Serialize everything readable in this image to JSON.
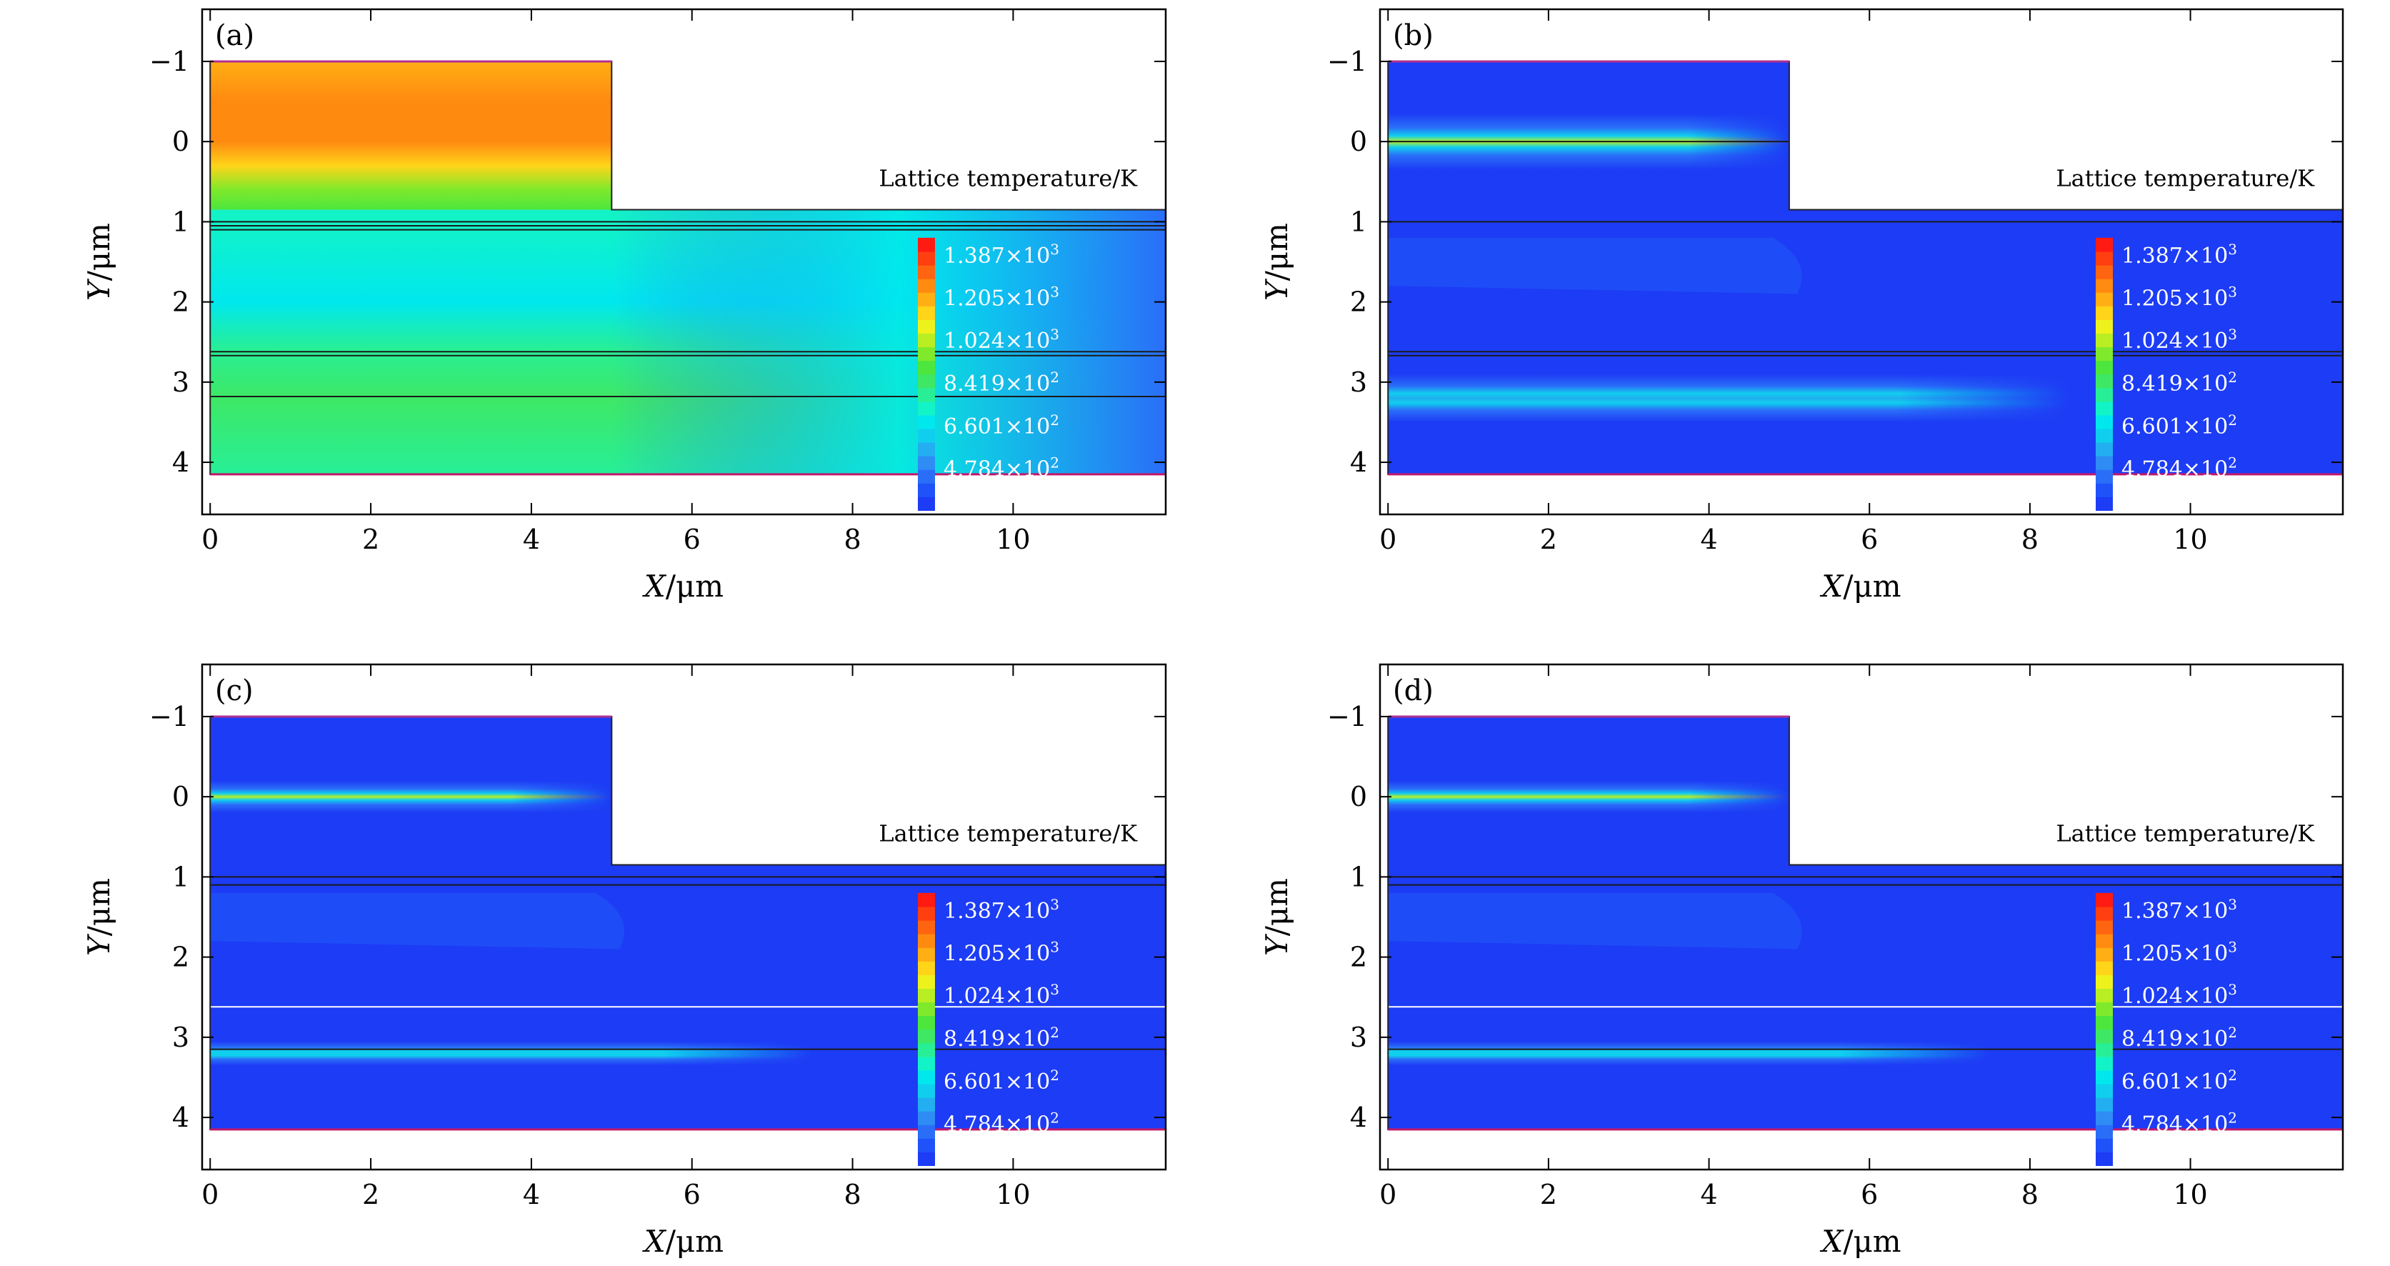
{
  "figure": {
    "description_units": "micrometres",
    "colorbar": {
      "title": "Lattice temperature/K",
      "min": 300,
      "max": 1460,
      "tick_labels": [
        {
          "mantissa": "1.387",
          "exp": "3",
          "value": 1387
        },
        {
          "mantissa": "1.205",
          "exp": "3",
          "value": 1205
        },
        {
          "mantissa": "1.024",
          "exp": "3",
          "value": 1024
        },
        {
          "mantissa": "8.419",
          "exp": "2",
          "value": 841.9
        },
        {
          "mantissa": "6.601",
          "exp": "2",
          "value": 660.1
        },
        {
          "mantissa": "4.784",
          "exp": "2",
          "value": 478.4
        }
      ],
      "colors": [
        "#1d3cf5",
        "#1f52f8",
        "#2a6ef8",
        "#2f8cf5",
        "#22aef0",
        "#10cfee",
        "#00e8ee",
        "#12f3c7",
        "#28ef95",
        "#3ee865",
        "#4ce63d",
        "#7fe92b",
        "#b9ee23",
        "#eef21c",
        "#ffd419",
        "#ffae14",
        "#ff8a10",
        "#ff6410",
        "#ff3f10",
        "#ff1a12"
      ]
    },
    "separator": "×",
    "base": "10"
  },
  "chart_data": [
    {
      "type": "heatmap",
      "panel_label": "(a)",
      "title": "",
      "xlabel_var": "X",
      "xlabel_unit": "/μm",
      "ylabel_var": "Y",
      "ylabel_unit": "/μm",
      "xlim": [
        -0.1,
        11.9
      ],
      "ylim": [
        -1.65,
        4.65
      ],
      "xticks": [
        "0",
        "2",
        "4",
        "6",
        "8",
        "10"
      ],
      "yticks": [
        "−1",
        "0",
        "1",
        "2",
        "3",
        "4"
      ],
      "geometry": {
        "ridge_x": [
          0,
          5
        ],
        "ridge_y_top": -1,
        "slab_y_top": 0.85,
        "bottom_y": 4.15,
        "x_max": 11.9
      },
      "color_scale": "Lattice temperature/K",
      "temperature_profile": {
        "ridge": [
          {
            "y": -1.0,
            "T": 1180
          },
          {
            "y": -0.5,
            "T": 1230
          },
          {
            "y": 0.0,
            "T": 1250
          },
          {
            "y": 0.3,
            "T": 1150
          },
          {
            "y": 0.6,
            "T": 980
          },
          {
            "y": 0.85,
            "T": 880
          }
        ],
        "left_column": [
          {
            "y": 1.0,
            "T": 720
          },
          {
            "y": 2.0,
            "T": 690
          },
          {
            "y": 2.6,
            "T": 780
          },
          {
            "y": 3.2,
            "T": 830
          },
          {
            "y": 4.1,
            "T": 800
          }
        ],
        "right_edge": {
          "x": 11.9,
          "T": 470
        }
      },
      "lines_y": [
        1.0,
        1.05,
        1.1,
        2.62,
        2.67,
        3.18
      ]
    },
    {
      "type": "heatmap",
      "panel_label": "(b)",
      "title": "",
      "xlabel_var": "X",
      "xlabel_unit": "/μm",
      "ylabel_var": "Y",
      "ylabel_unit": "/μm",
      "xlim": [
        -0.1,
        11.9
      ],
      "ylim": [
        -1.65,
        4.65
      ],
      "xticks": [
        "0",
        "2",
        "4",
        "6",
        "8",
        "10"
      ],
      "yticks": [
        "−1",
        "0",
        "1",
        "2",
        "3",
        "4"
      ],
      "geometry": {
        "ridge_x": [
          0,
          5
        ],
        "ridge_y_top": -1,
        "slab_y_top": 0.85,
        "bottom_y": 4.15,
        "x_max": 11.9
      },
      "color_scale": "Lattice temperature/K",
      "hot_bands": [
        {
          "y": 0.0,
          "x_end": 5.0,
          "peak_T": 1000,
          "half_width": 0.35
        },
        {
          "y": 3.2,
          "x_end": 8.5,
          "peak_T": 560,
          "half_width": 0.3
        }
      ],
      "lines_y": [
        0.0,
        1.0,
        2.62,
        2.67
      ]
    },
    {
      "type": "heatmap",
      "panel_label": "(c)",
      "title": "",
      "xlabel_var": "X",
      "xlabel_unit": "/μm",
      "ylabel_var": "Y",
      "ylabel_unit": "/μm",
      "xlim": [
        -0.1,
        11.9
      ],
      "ylim": [
        -1.65,
        4.65
      ],
      "xticks": [
        "0",
        "2",
        "4",
        "6",
        "8",
        "10"
      ],
      "yticks": [
        "−1",
        "0",
        "1",
        "2",
        "3",
        "4"
      ],
      "geometry": {
        "ridge_x": [
          0,
          5
        ],
        "ridge_y_top": -1,
        "slab_y_top": 0.85,
        "bottom_y": 4.15,
        "x_max": 11.9
      },
      "color_scale": "Lattice temperature/K",
      "hot_bands": [
        {
          "y": 0.0,
          "x_end": 5.0,
          "peak_T": 1000,
          "half_width": 0.2
        },
        {
          "y": 3.2,
          "x_end": 7.5,
          "peak_T": 600,
          "half_width": 0.15
        }
      ],
      "lines_y": [
        1.0,
        1.1,
        2.62,
        3.15
      ]
    },
    {
      "type": "heatmap",
      "panel_label": "(d)",
      "title": "",
      "xlabel_var": "X",
      "xlabel_unit": "/μm",
      "ylabel_var": "Y",
      "ylabel_unit": "/μm",
      "xlim": [
        -0.1,
        11.9
      ],
      "ylim": [
        -1.65,
        4.65
      ],
      "xticks": [
        "0",
        "2",
        "4",
        "6",
        "8",
        "10"
      ],
      "yticks": [
        "−1",
        "0",
        "1",
        "2",
        "3",
        "4"
      ],
      "geometry": {
        "ridge_x": [
          0,
          5
        ],
        "ridge_y_top": -1,
        "slab_y_top": 0.85,
        "bottom_y": 4.15,
        "x_max": 11.9
      },
      "color_scale": "Lattice temperature/K",
      "hot_bands": [
        {
          "y": 0.0,
          "x_end": 5.0,
          "peak_T": 1000,
          "half_width": 0.2
        },
        {
          "y": 3.2,
          "x_end": 7.5,
          "peak_T": 600,
          "half_width": 0.15
        }
      ],
      "lines_y": [
        1.0,
        1.1,
        2.62,
        3.15
      ]
    }
  ]
}
